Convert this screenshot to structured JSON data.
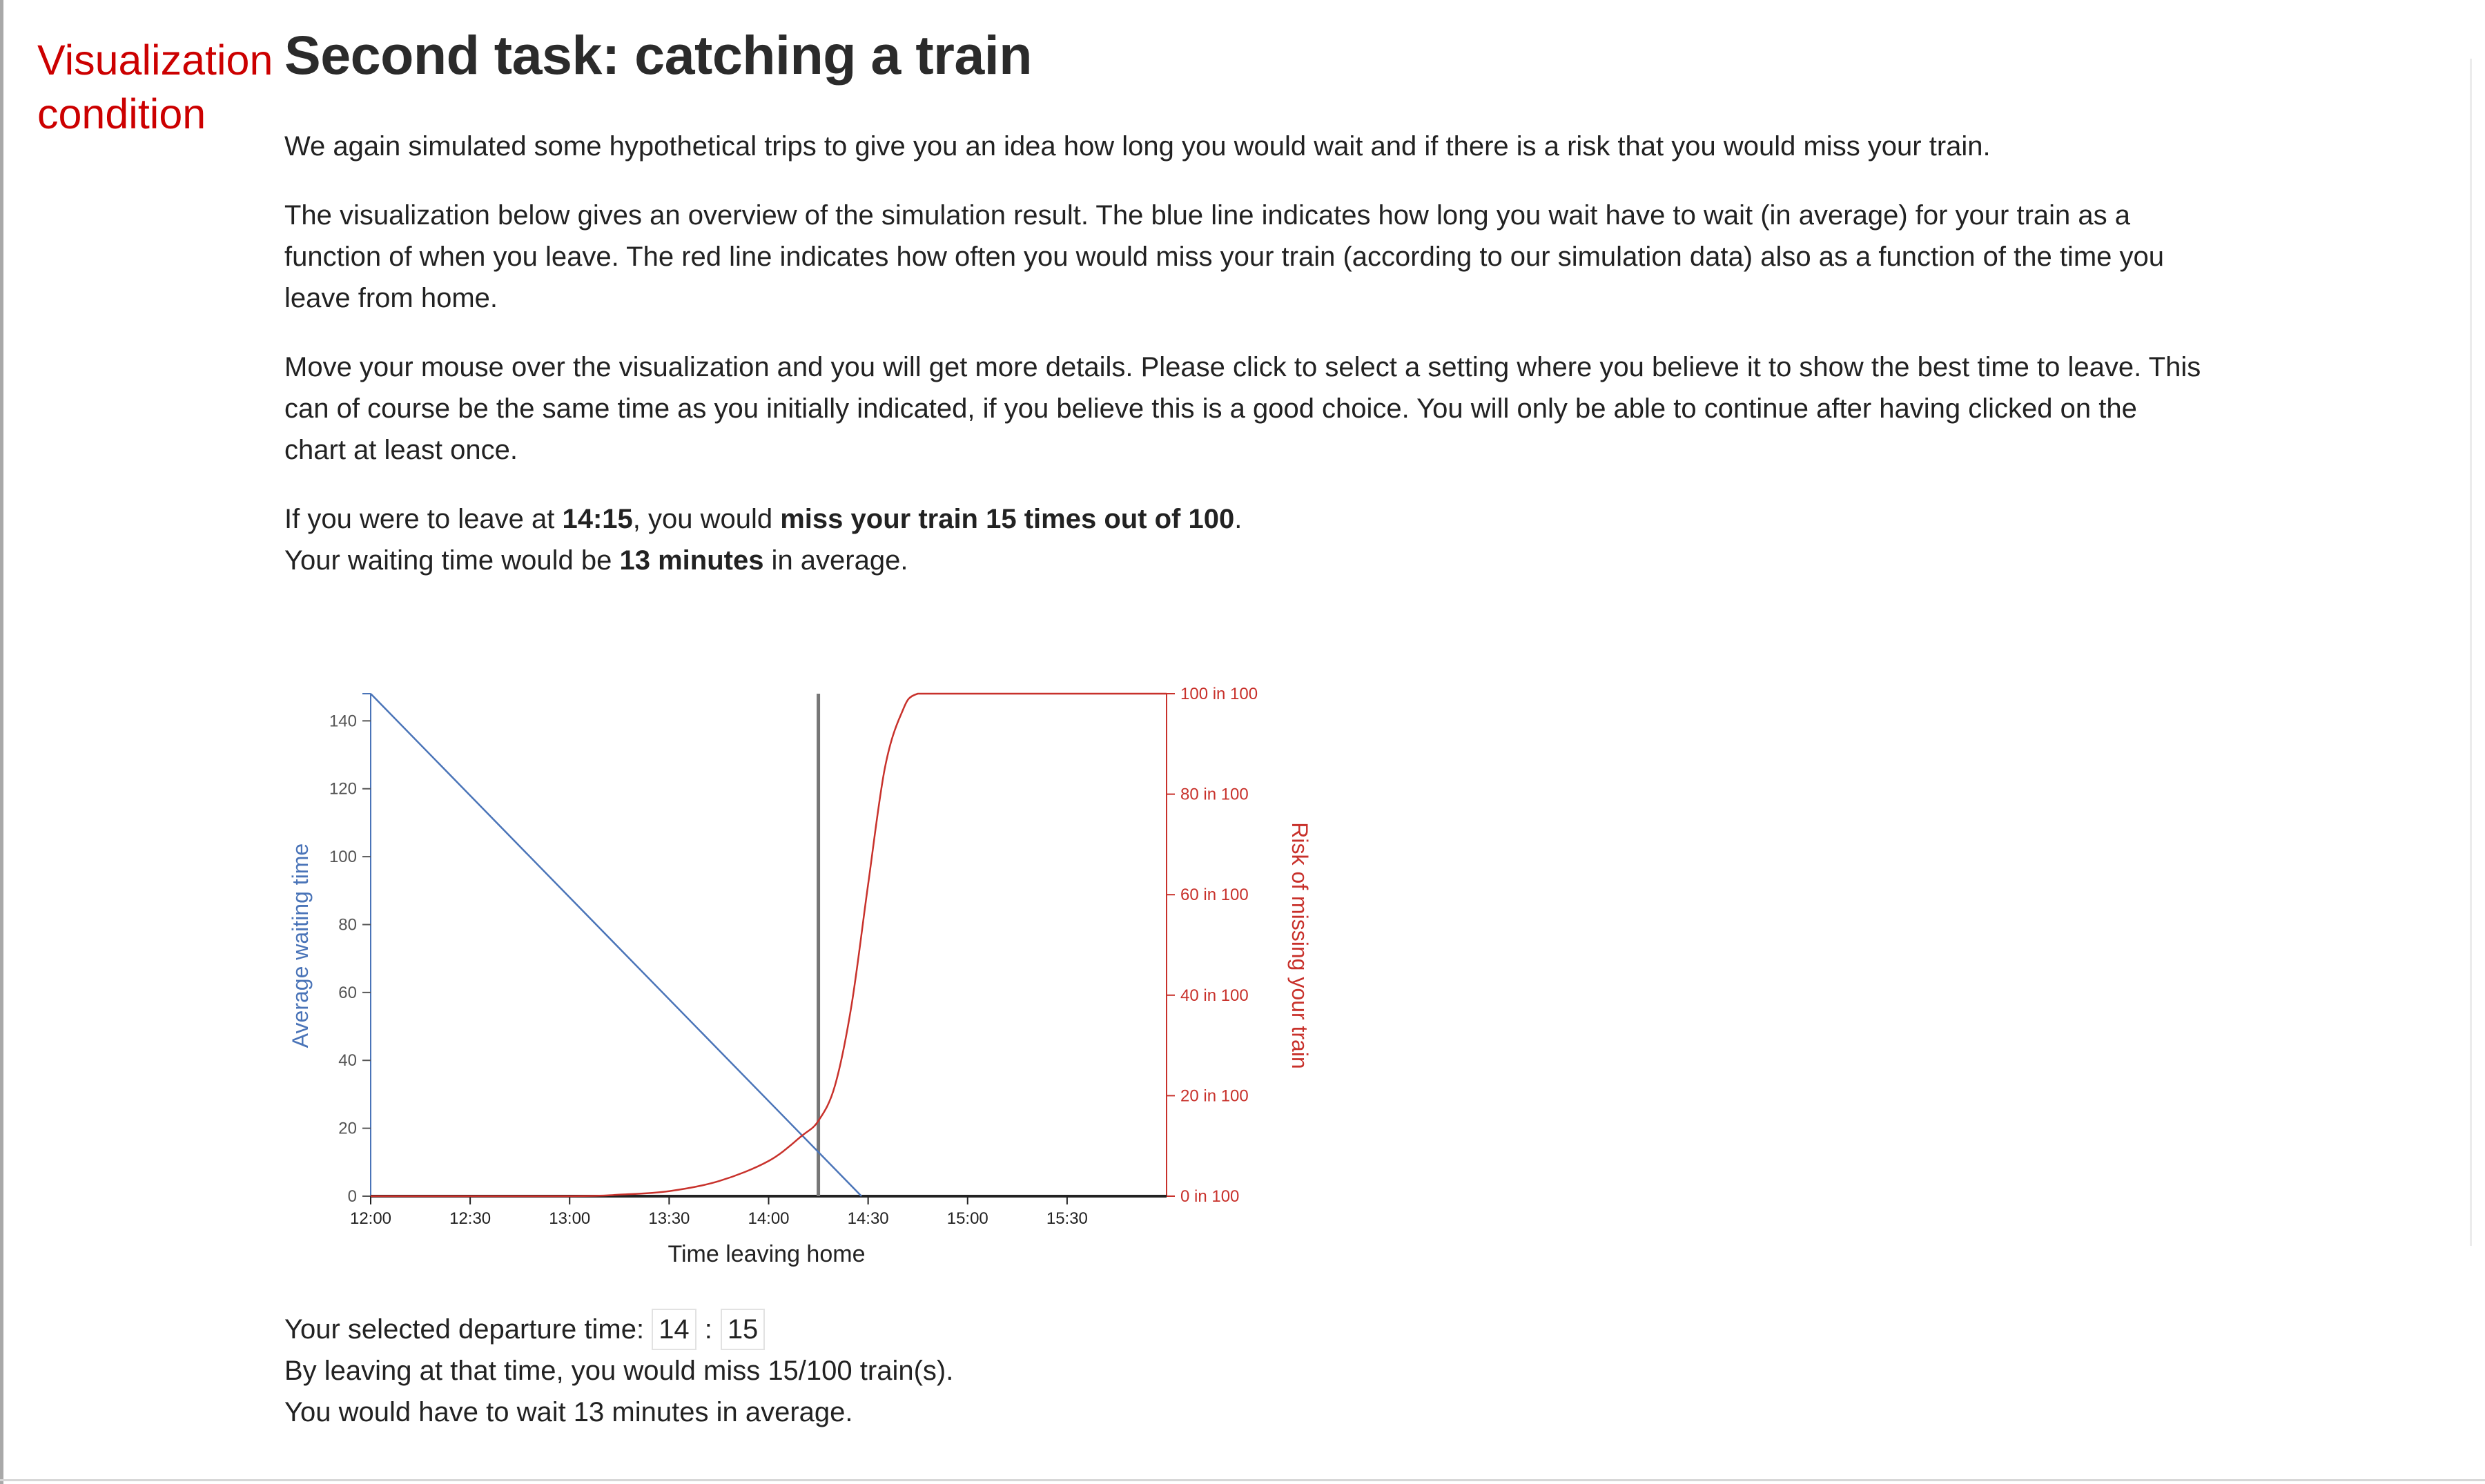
{
  "condition_label": "Visualization condition",
  "title": "Second task: catching a train",
  "intro": "We again simulated some hypothetical trips to give you an idea how long you would wait and if there is a risk that you would miss your train.",
  "description": "The visualization below gives an overview of the simulation result. The blue line indicates how long you wait have to wait (in average) for your train as a function of when you leave. The red line indicates how often you would miss your train (according to our simulation data) also as a function of the time you leave from home.",
  "instructions": "Move your mouse over the visualization and you will get more details. Please click to select a setting where you believe it to show the best time to leave. This can of course be the same time as you initially indicated, if you believe this is a good choice. You will only be able to continue after having clicked on the chart at least once.",
  "summary": {
    "prefix": "If you were to leave at ",
    "time": "14:15",
    "mid": ", you would ",
    "miss": "miss your train 15 times out of 100",
    "end": ".",
    "wait_prefix": "Your waiting time would be ",
    "wait": "13 minutes",
    "wait_suffix": " in average."
  },
  "selection": {
    "label": "Your selected departure time:",
    "hour": "14",
    "separator": ":",
    "minute": "15",
    "miss_text": "By leaving at that time, you would miss 15/100 train(s).",
    "wait_text": "You would have to wait 13 minutes in average."
  },
  "colors": {
    "wait_line": "#4a74b8",
    "risk_line": "#c8312b",
    "marker": "#777777",
    "left_axis": "#4a74b8",
    "right_axis": "#c8312b"
  },
  "chart_data": {
    "type": "line",
    "title": "",
    "xlabel": "Time leaving home",
    "ylabel_left": "Average waiting time",
    "ylabel_right": "Risk of missing your train",
    "x_ticks": [
      "12:00",
      "12:30",
      "13:00",
      "13:30",
      "14:00",
      "14:30",
      "15:00",
      "15:30"
    ],
    "x_range": [
      "12:00",
      "16:00"
    ],
    "y_left_ticks": [
      0,
      20,
      40,
      60,
      80,
      100,
      120,
      140
    ],
    "y_left_range": [
      0,
      148
    ],
    "y_right_ticks": [
      "0 in 100",
      "20 in 100",
      "40 in 100",
      "60 in 100",
      "80 in 100",
      "100 in 100"
    ],
    "y_right_range": [
      0,
      100
    ],
    "selected_time": "14:15",
    "series": [
      {
        "name": "Average waiting time",
        "axis": "left",
        "x": [
          "12:00",
          "14:28"
        ],
        "y": [
          148,
          0
        ]
      },
      {
        "name": "Risk of missing your train",
        "axis": "right",
        "x": [
          "12:00",
          "13:00",
          "13:15",
          "13:30",
          "13:45",
          "14:00",
          "14:10",
          "14:15",
          "14:20",
          "14:25",
          "14:30",
          "14:35",
          "14:40",
          "14:45",
          "15:00",
          "15:30",
          "16:00"
        ],
        "y": [
          0,
          0,
          0.3,
          1,
          3,
          7,
          12,
          15,
          22,
          38,
          62,
          85,
          96,
          100,
          100,
          100,
          100
        ]
      }
    ]
  }
}
